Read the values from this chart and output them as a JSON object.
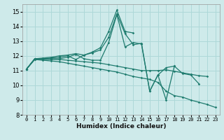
{
  "title": "",
  "xlabel": "Humidex (Indice chaleur)",
  "xlim": [
    -0.5,
    23.5
  ],
  "ylim": [
    8,
    15.5
  ],
  "yticks": [
    8,
    9,
    10,
    11,
    12,
    13,
    14,
    15
  ],
  "xticks": [
    0,
    1,
    2,
    3,
    4,
    5,
    6,
    7,
    8,
    9,
    10,
    11,
    12,
    13,
    14,
    15,
    16,
    17,
    18,
    19,
    20,
    21,
    22,
    23
  ],
  "bg_color": "#ceeaea",
  "grid_color": "#add8d8",
  "line_color": "#1e7b6e",
  "series": {
    "line_max": [
      11.1,
      11.8,
      11.85,
      11.9,
      12.0,
      12.05,
      12.15,
      12.05,
      12.25,
      12.55,
      13.65,
      15.1,
      13.65,
      13.55,
      null,
      null,
      null,
      null,
      null,
      null,
      null,
      null,
      null,
      null
    ],
    "line_mid1": [
      11.1,
      11.8,
      11.8,
      11.85,
      11.9,
      12.0,
      11.75,
      12.05,
      12.2,
      12.4,
      13.25,
      14.85,
      13.5,
      12.75,
      12.85,
      9.6,
      10.7,
      9.0,
      11.3,
      null,
      null,
      null,
      null,
      null
    ],
    "line_mid2": [
      11.1,
      11.8,
      11.8,
      11.8,
      11.8,
      11.9,
      12.1,
      11.8,
      11.7,
      11.7,
      12.9,
      14.8,
      12.6,
      12.9,
      12.8,
      9.6,
      10.7,
      11.2,
      11.3,
      10.8,
      10.7,
      10.1,
      null,
      null
    ],
    "line_trend": [
      11.1,
      11.75,
      11.75,
      11.75,
      11.75,
      11.7,
      11.65,
      11.6,
      11.55,
      11.5,
      11.4,
      11.3,
      11.2,
      11.1,
      11.0,
      11.0,
      11.0,
      11.05,
      10.95,
      10.85,
      10.75,
      10.65,
      10.6,
      null
    ],
    "line_min": [
      11.1,
      11.75,
      11.7,
      11.65,
      11.6,
      11.5,
      11.4,
      11.3,
      11.2,
      11.1,
      11.0,
      10.9,
      10.75,
      10.6,
      10.5,
      10.4,
      10.2,
      9.6,
      9.3,
      9.2,
      9.0,
      8.85,
      8.7,
      8.5
    ]
  }
}
